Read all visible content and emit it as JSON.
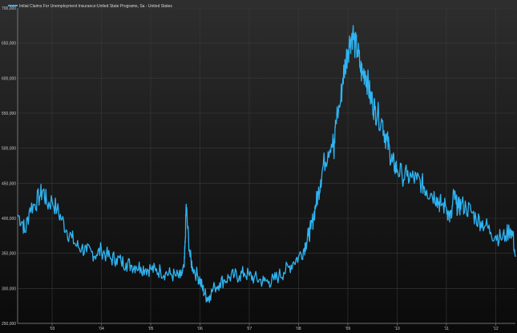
{
  "chart_data": {
    "type": "line",
    "title": "",
    "xlabel": "",
    "ylabel": "",
    "legend": {
      "placement": "top-left",
      "entries": [
        "Initial Claims For Unemployment Insurance:United State Programs, Sa - United States"
      ]
    },
    "colors": {
      "series": "#2fb4f2",
      "background": "#1e1e1e",
      "grid": "#3a3a3a",
      "axis": "#8a8a8a"
    },
    "grid": true,
    "ylim": [
      250000,
      700000
    ],
    "xlim": [
      2002.3,
      2012.4
    ],
    "y_tick_values": [
      250000,
      300000,
      350000,
      400000,
      450000,
      500000,
      550000,
      600000,
      650000,
      700000
    ],
    "y_tick_labels": [
      "250,000",
      "300,000",
      "350,000",
      "400,000",
      "450,000",
      "500,000",
      "550,000",
      "600,000",
      "650,000",
      "700,000"
    ],
    "x_tick_values": [
      2003,
      2004,
      2005,
      2006,
      2007,
      2008,
      2009,
      2010,
      2011,
      2012
    ],
    "x_tick_labels": [
      "'03",
      "'04",
      "'05",
      "'06",
      "'07",
      "'08",
      "'09",
      "'10",
      "'11",
      "'12"
    ],
    "series": [
      {
        "name": "Initial Claims For Unemployment Insurance:United State Programs, Sa - United States",
        "points": [
          [
            2002.3,
            405000
          ],
          [
            2002.4,
            395000
          ],
          [
            2002.45,
            380000
          ],
          [
            2002.55,
            415000
          ],
          [
            2002.65,
            420000
          ],
          [
            2002.75,
            432000
          ],
          [
            2002.82,
            440000
          ],
          [
            2002.9,
            420000
          ],
          [
            2003.0,
            425000
          ],
          [
            2003.1,
            412000
          ],
          [
            2003.2,
            398000
          ],
          [
            2003.3,
            382000
          ],
          [
            2003.4,
            372000
          ],
          [
            2003.5,
            360000
          ],
          [
            2003.6,
            358000
          ],
          [
            2003.7,
            352000
          ],
          [
            2003.8,
            352000
          ],
          [
            2003.9,
            348000
          ],
          [
            2004.0,
            355000
          ],
          [
            2004.1,
            348000
          ],
          [
            2004.2,
            342000
          ],
          [
            2004.3,
            343000
          ],
          [
            2004.4,
            338000
          ],
          [
            2004.5,
            336000
          ],
          [
            2004.6,
            333000
          ],
          [
            2004.7,
            332000
          ],
          [
            2004.8,
            330000
          ],
          [
            2004.9,
            328000
          ],
          [
            2005.0,
            328000
          ],
          [
            2005.1,
            325000
          ],
          [
            2005.2,
            325000
          ],
          [
            2005.3,
            322000
          ],
          [
            2005.4,
            320000
          ],
          [
            2005.5,
            318000
          ],
          [
            2005.6,
            315000
          ],
          [
            2005.68,
            330000
          ],
          [
            2005.7,
            365000
          ],
          [
            2005.72,
            420000
          ],
          [
            2005.75,
            385000
          ],
          [
            2005.8,
            345000
          ],
          [
            2005.85,
            330000
          ],
          [
            2005.95,
            318000
          ],
          [
            2006.0,
            312000
          ],
          [
            2006.05,
            300000
          ],
          [
            2006.1,
            292000
          ],
          [
            2006.15,
            286000
          ],
          [
            2006.2,
            290000
          ],
          [
            2006.3,
            302000
          ],
          [
            2006.4,
            308000
          ],
          [
            2006.5,
            312000
          ],
          [
            2006.6,
            316000
          ],
          [
            2006.7,
            318000
          ],
          [
            2006.8,
            318000
          ],
          [
            2006.9,
            322000
          ],
          [
            2007.0,
            318000
          ],
          [
            2007.1,
            315000
          ],
          [
            2007.2,
            312000
          ],
          [
            2007.3,
            310000
          ],
          [
            2007.4,
            310000
          ],
          [
            2007.5,
            312000
          ],
          [
            2007.6,
            318000
          ],
          [
            2007.7,
            323000
          ],
          [
            2007.8,
            330000
          ],
          [
            2007.9,
            338000
          ],
          [
            2008.0,
            345000
          ],
          [
            2008.1,
            355000
          ],
          [
            2008.15,
            365000
          ],
          [
            2008.2,
            375000
          ],
          [
            2008.25,
            385000
          ],
          [
            2008.3,
            400000
          ],
          [
            2008.35,
            420000
          ],
          [
            2008.4,
            435000
          ],
          [
            2008.45,
            455000
          ],
          [
            2008.5,
            475000
          ],
          [
            2008.6,
            495000
          ],
          [
            2008.7,
            520000
          ],
          [
            2008.72,
            485000
          ],
          [
            2008.75,
            540000
          ],
          [
            2008.85,
            565000
          ],
          [
            2008.9,
            600000
          ],
          [
            2008.95,
            620000
          ],
          [
            2009.0,
            640000
          ],
          [
            2009.05,
            655000
          ],
          [
            2009.1,
            665000
          ],
          [
            2009.15,
            645000
          ],
          [
            2009.2,
            640000
          ],
          [
            2009.25,
            615000
          ],
          [
            2009.3,
            605000
          ],
          [
            2009.35,
            610000
          ],
          [
            2009.4,
            595000
          ],
          [
            2009.45,
            575000
          ],
          [
            2009.5,
            565000
          ],
          [
            2009.55,
            555000
          ],
          [
            2009.6,
            548000
          ],
          [
            2009.7,
            538000
          ],
          [
            2009.75,
            520000
          ],
          [
            2009.8,
            510000
          ],
          [
            2009.85,
            495000
          ],
          [
            2009.9,
            480000
          ],
          [
            2009.95,
            475000
          ],
          [
            2010.0,
            470000
          ],
          [
            2010.1,
            462000
          ],
          [
            2010.2,
            460000
          ],
          [
            2010.3,
            458000
          ],
          [
            2010.4,
            455000
          ],
          [
            2010.5,
            450000
          ],
          [
            2010.55,
            445000
          ],
          [
            2010.6,
            440000
          ],
          [
            2010.7,
            435000
          ],
          [
            2010.8,
            430000
          ],
          [
            2010.85,
            422000
          ],
          [
            2010.9,
            420000
          ],
          [
            2011.0,
            415000
          ],
          [
            2011.05,
            405000
          ],
          [
            2011.1,
            400000
          ],
          [
            2011.15,
            435000
          ],
          [
            2011.2,
            420000
          ],
          [
            2011.25,
            415000
          ],
          [
            2011.3,
            420000
          ],
          [
            2011.4,
            415000
          ],
          [
            2011.5,
            410000
          ],
          [
            2011.6,
            400000
          ],
          [
            2011.7,
            395000
          ],
          [
            2011.8,
            390000
          ],
          [
            2011.9,
            380000
          ],
          [
            2012.0,
            375000
          ],
          [
            2012.1,
            372000
          ],
          [
            2012.2,
            375000
          ],
          [
            2012.3,
            385000
          ],
          [
            2012.35,
            375000
          ],
          [
            2012.4,
            345000
          ]
        ]
      }
    ]
  }
}
